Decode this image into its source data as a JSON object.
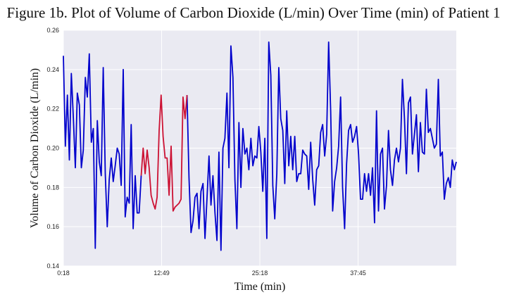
{
  "title": "Figure 1b. Plot of Volume of Carbon Dioxide (L/min) Over Time (min) of Patient 1",
  "chart_data": {
    "type": "line",
    "title": "Figure 1b. Plot of Volume of Carbon Dioxide (L/min) Over Time (min) of Patient 1",
    "xlabel": "Time (min)",
    "ylabel": "Volume of Carbon Dioxide (L/min)",
    "ylim": [
      0.14,
      0.26
    ],
    "y_ticks": [
      "0.14",
      "0.16",
      "0.18",
      "0.20",
      "0.22",
      "0.24",
      "0.26"
    ],
    "x_ticks": [
      "0:18",
      "12:49",
      "25:18",
      "37:45"
    ],
    "grid": true,
    "colors": {
      "background": "#EAEAF2",
      "grid": "#FFFFFF",
      "main_series": "#0000CC",
      "highlight_series": "#CC1133"
    },
    "series": [
      {
        "color": "#0000CC",
        "values": [
          0.247,
          0.201,
          0.227,
          0.194,
          0.238,
          0.215,
          0.19,
          0.228,
          0.222,
          0.19,
          0.199,
          0.236,
          0.226,
          0.248,
          0.203,
          0.21,
          0.149,
          0.214,
          0.193,
          0.186,
          0.241,
          0.187,
          0.16,
          0.184,
          0.195,
          0.183,
          0.191,
          0.2,
          0.197,
          0.181,
          0.24,
          0.165,
          0.175,
          0.172,
          0.212,
          0.159,
          0.186,
          0.167,
          0.167,
          0.186,
          null,
          null,
          null,
          null,
          null,
          null,
          null,
          null,
          null,
          null,
          null,
          null,
          null,
          null,
          null,
          null,
          null,
          null,
          null,
          null,
          null,
          null,
          0.227,
          0.185,
          0.157,
          0.163,
          0.175,
          0.177,
          0.159,
          0.178,
          0.182,
          0.154,
          0.174,
          0.196,
          0.171,
          0.186,
          0.167,
          0.153,
          0.198,
          0.148,
          0.2,
          0.205,
          0.228,
          0.19,
          0.252,
          0.236,
          0.184,
          0.159,
          0.213,
          0.18,
          0.21,
          0.197,
          0.2,
          0.189,
          0.205,
          0.191,
          0.196,
          0.195,
          0.211,
          0.198,
          0.178,
          0.205,
          0.154,
          0.254,
          0.237,
          0.181,
          0.164,
          0.187,
          0.241,
          0.215,
          0.209,
          0.182,
          0.219,
          0.191,
          0.206,
          0.189,
          0.206,
          0.183,
          0.187,
          0.187,
          0.199,
          0.197,
          0.196,
          0.179,
          0.203,
          0.184,
          0.171,
          0.189,
          0.191,
          0.208,
          0.212,
          0.196,
          0.207,
          0.254,
          0.219,
          0.168,
          0.183,
          0.19,
          0.201,
          0.226,
          0.18,
          0.159,
          0.192,
          0.209,
          0.212,
          0.203,
          0.206,
          0.211,
          0.197,
          0.174,
          0.174,
          0.187,
          0.178,
          0.187,
          0.176,
          0.19,
          0.162,
          0.219,
          0.168,
          0.197,
          0.2,
          0.169,
          0.181,
          0.209,
          0.189,
          0.181,
          0.194,
          0.2,
          0.193,
          0.2,
          0.235,
          0.215,
          0.187,
          0.223,
          0.226,
          0.197,
          0.207,
          0.217,
          0.188,
          0.213,
          0.198,
          0.197,
          0.23,
          0.208,
          0.21,
          0.205,
          0.2,
          0.202,
          0.235,
          0.196,
          0.198,
          0.174,
          0.182,
          0.185,
          0.18,
          0.194,
          0.189,
          0.193
        ]
      },
      {
        "color": "#CC1133",
        "values": [
          null,
          null,
          null,
          null,
          null,
          null,
          null,
          null,
          null,
          null,
          null,
          null,
          null,
          null,
          null,
          null,
          null,
          null,
          null,
          null,
          null,
          null,
          null,
          null,
          null,
          null,
          null,
          null,
          null,
          null,
          null,
          null,
          null,
          null,
          null,
          null,
          null,
          null,
          null,
          0.186,
          0.2,
          0.187,
          0.199,
          0.19,
          0.176,
          0.172,
          0.169,
          0.175,
          0.209,
          0.227,
          0.206,
          0.195,
          0.195,
          0.176,
          0.201,
          0.168,
          0.17,
          0.171,
          0.172,
          0.174,
          0.226,
          0.215,
          0.227
        ]
      }
    ]
  }
}
